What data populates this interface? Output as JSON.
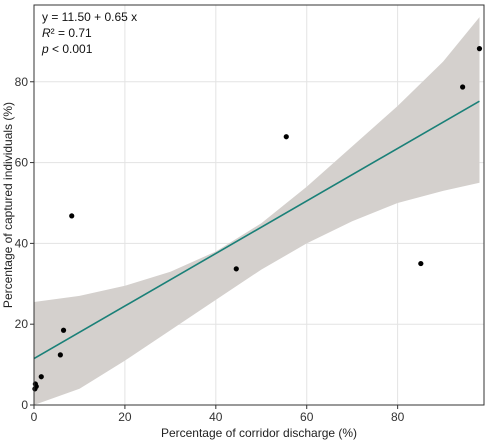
{
  "chart_data": {
    "type": "scatter",
    "xlabel": "Percentage of corridor discharge (%)",
    "ylabel": "Percentage of captured individuals (%)",
    "xlim": [
      0,
      99
    ],
    "ylim": [
      0,
      99
    ],
    "x_ticks": [
      0,
      20,
      40,
      60,
      80
    ],
    "y_ticks": [
      0,
      20,
      40,
      60,
      80
    ],
    "grid": true,
    "annotations": {
      "equation": "y = 11.50 + 0.65 x",
      "r2_label": "R² = 0.71",
      "p_label": "p < 0.001"
    },
    "points": [
      {
        "x": 0.2,
        "y": 4.0
      },
      {
        "x": 0.3,
        "y": 5.2
      },
      {
        "x": 0.5,
        "y": 4.6
      },
      {
        "x": 1.6,
        "y": 7.0
      },
      {
        "x": 5.8,
        "y": 12.4
      },
      {
        "x": 6.5,
        "y": 18.5
      },
      {
        "x": 8.3,
        "y": 46.8
      },
      {
        "x": 44.5,
        "y": 33.7
      },
      {
        "x": 55.5,
        "y": 66.4
      },
      {
        "x": 85.1,
        "y": 35.0
      },
      {
        "x": 94.3,
        "y": 78.7
      },
      {
        "x": 98.0,
        "y": 88.2
      }
    ],
    "regression": {
      "intercept": 11.5,
      "slope": 0.65,
      "x_range": [
        0,
        98
      ]
    },
    "confidence_band": {
      "x": [
        0,
        10,
        20,
        30,
        40,
        50,
        60,
        70,
        80,
        90,
        98
      ],
      "lower": [
        -2.5,
        4.0,
        11.0,
        18.5,
        26.0,
        33.5,
        40.0,
        45.5,
        50.0,
        53.0,
        55.0
      ],
      "upper": [
        25.5,
        27.0,
        29.5,
        33.0,
        38.0,
        45.0,
        54.0,
        64.0,
        74.0,
        85.0,
        96.0
      ]
    },
    "colors": {
      "line": "#1a8078",
      "band": "#d4d0cd",
      "point": "#000000",
      "grid": "#e3e3e3",
      "axis": "#333333"
    }
  }
}
